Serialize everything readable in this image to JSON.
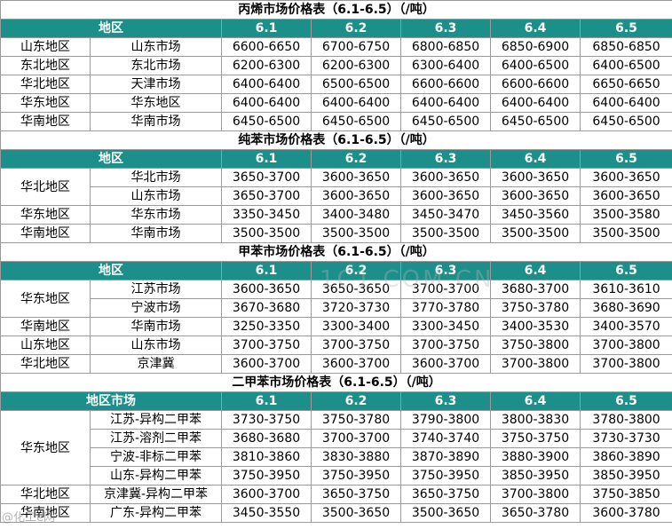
{
  "tables": [
    {
      "title": "丙烯市场价格表（6.1-6.5）（/吨）",
      "header": {
        "region": "地区",
        "dates": [
          "6.1",
          "6.2",
          "6.3",
          "6.4",
          "6.5"
        ]
      },
      "rows": [
        {
          "region": "山东地区",
          "market": "山东市场",
          "prices": [
            "6600-6650",
            "6700-6750",
            "6800-6850",
            "6850-6900",
            "6850-6850"
          ]
        },
        {
          "region": "东北地区",
          "market": "东北市场",
          "prices": [
            "6200-6300",
            "6200-6300",
            "6300-6400",
            "6400-6500",
            "6400-6500"
          ]
        },
        {
          "region": "华北地区",
          "market": "天津市场",
          "prices": [
            "6400-6400",
            "6500-6500",
            "6600-6600",
            "6600-6600",
            "6650-6650"
          ]
        },
        {
          "region": "华东地区",
          "market": "华东地区",
          "prices": [
            "6400-6400",
            "6400-6400",
            "6400-6400",
            "6400-6400",
            "6400-6400"
          ]
        },
        {
          "region": "华南地区",
          "market": "华南市场",
          "prices": [
            "6450-6500",
            "6450-6500",
            "6450-6500",
            "6450-6500",
            "6450-6500"
          ]
        }
      ]
    },
    {
      "title": "纯苯市场价格表（6.1-6.5）（/吨）",
      "header": {
        "region": "地区",
        "dates": [
          "6.1",
          "6.2",
          "6.3",
          "6.4",
          "6.5"
        ]
      },
      "rows": [
        {
          "region": "华北地区",
          "market": "华北市场",
          "prices": [
            "3650-3700",
            "3600-3650",
            "3600-3650",
            "3600-3650",
            "3600-3650"
          ]
        },
        {
          "region": "",
          "market": "山东市场",
          "prices": [
            "3650-3700",
            "3600-3650",
            "3600-3650",
            "3600-3650",
            "3600-3650"
          ]
        },
        {
          "region": "华东地区",
          "market": "华东市场",
          "prices": [
            "3350-3450",
            "3400-3480",
            "3450-3470",
            "3450-3560",
            "3500-3580"
          ]
        },
        {
          "region": "华南地区",
          "market": "华南市场",
          "prices": [
            "3500-3500",
            "3500-3500",
            "3500-3500",
            "3500-3500",
            "3500-3500"
          ]
        }
      ]
    },
    {
      "title": "甲苯市场价格表（6.1-6.5）（/吨）",
      "header": {
        "region": "地区",
        "dates": [
          "6.1",
          "6.2",
          "6.3",
          "6.4",
          "6.5"
        ]
      },
      "rows": [
        {
          "region": "华东地区",
          "market": "江苏市场",
          "prices": [
            "3600-3650",
            "3650-3650",
            "3700-3700",
            "3680-3700",
            "3610-3610"
          ]
        },
        {
          "region": "",
          "market": "宁波市场",
          "prices": [
            "3670-3680",
            "3720-3730",
            "3770-3780",
            "3750-3780",
            "3680-3690"
          ]
        },
        {
          "region": "华南地区",
          "market": "华南市场",
          "prices": [
            "3250-3350",
            "3300-3400",
            "3300-3450",
            "3400-3530",
            "3400-3570"
          ]
        },
        {
          "region": "山东地区",
          "market": "山东市场",
          "prices": [
            "3700-3750",
            "3700-3750",
            "3700-3750",
            "3750-3800",
            "3700-3800"
          ]
        },
        {
          "region": "华北地区",
          "market": "京津冀",
          "prices": [
            "3600-3700",
            "3600-3700",
            "3600-3700",
            "3700-3800",
            "3700-3800"
          ]
        }
      ]
    },
    {
      "title": "二甲苯市场价格表（6.1-6.5）（/吨）",
      "header": {
        "region": "地区市场",
        "dates": [
          "6.1",
          "6.2",
          "6.3",
          "6.4",
          "6.5"
        ]
      },
      "rows": [
        {
          "region": "华东地区",
          "market": "江苏-异构二甲苯",
          "prices": [
            "3730-3750",
            "3750-3780",
            "3790-3800",
            "3800-3830",
            "3780-3800"
          ]
        },
        {
          "region": "",
          "market": "江苏-溶剂二甲苯",
          "prices": [
            "3680-3680",
            "3700-3700",
            "3740-3740",
            "3750-3750",
            "3730-3730"
          ]
        },
        {
          "region": "",
          "market": "宁波-非标二甲苯",
          "prices": [
            "3810-3860",
            "3830-3880",
            "3870-3890",
            "3880-3900",
            "3860-3890"
          ]
        },
        {
          "region": "",
          "market": "山东-异构二甲苯",
          "prices": [
            "3750-3950",
            "3750-3950",
            "3750-3950",
            "3850-3950",
            "3850-3950"
          ]
        },
        {
          "region": "华北地区",
          "market": "京津冀-异构二甲苯",
          "prices": [
            "3600-3700",
            "3650-3750",
            "3650-3750",
            "3700-3800",
            "3750-3850"
          ]
        },
        {
          "region": "华南地区",
          "market": "广东-异构二甲苯",
          "prices": [
            "3450-3550",
            "3500-3650",
            "3500-3650",
            "3650-3780",
            "3600-3780"
          ]
        }
      ]
    }
  ],
  "watermark": {
    "center": "1C1 COM CN",
    "corner": "@化工e网"
  }
}
